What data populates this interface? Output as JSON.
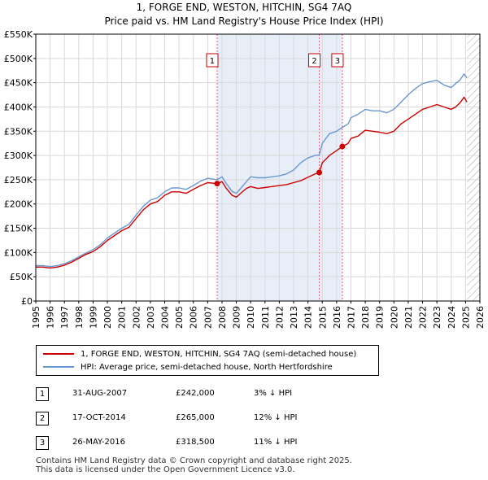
{
  "chart_data": {
    "type": "line",
    "title": "1, FORGE END, WESTON, HITCHIN, SG4 7AQ",
    "subtitle": "Price paid vs. HM Land Registry's House Price Index (HPI)",
    "xlabel": "",
    "ylabel": "",
    "xlim": [
      1995,
      2026
    ],
    "ylim": [
      0,
      550000
    ],
    "y_ticks": [
      0,
      50000,
      100000,
      150000,
      200000,
      250000,
      300000,
      350000,
      400000,
      450000,
      500000,
      550000
    ],
    "y_tick_labels": [
      "£0",
      "£50K",
      "£100K",
      "£150K",
      "£200K",
      "£250K",
      "£300K",
      "£350K",
      "£400K",
      "£450K",
      "£500K",
      "£550K"
    ],
    "x_ticks": [
      1995,
      1996,
      1997,
      1998,
      1999,
      2000,
      2001,
      2002,
      2003,
      2004,
      2005,
      2006,
      2007,
      2008,
      2009,
      2010,
      2011,
      2012,
      2013,
      2014,
      2015,
      2016,
      2017,
      2018,
      2019,
      2020,
      2021,
      2022,
      2023,
      2024,
      2025,
      2026
    ],
    "x_tick_labels": [
      "1995",
      "1996",
      "1997",
      "1998",
      "1999",
      "2000",
      "2001",
      "2002",
      "2003",
      "2004",
      "2005",
      "2006",
      "2007",
      "2008",
      "2009",
      "2010",
      "2011",
      "2012",
      "2013",
      "2014",
      "2015",
      "2016",
      "2017",
      "2018",
      "2019",
      "2020",
      "2021",
      "2022",
      "2023",
      "2024",
      "2025",
      "2026"
    ],
    "grid": true,
    "colors": {
      "price_paid": "#cc0000",
      "hpi": "#6a98d0",
      "shade": "#e8eef8",
      "hatch": "#b0b0b0"
    },
    "shaded_ranges": [
      [
        2007.66,
        2016.4
      ]
    ],
    "hatched_from": 2025.1,
    "series": [
      {
        "name": "1, FORGE END, WESTON, HITCHIN, SG4 7AQ (semi-detached house)",
        "x": [
          1995.0,
          1995.5,
          1996.0,
          1996.5,
          1997.0,
          1997.5,
          1998.0,
          1998.5,
          1999.0,
          1999.5,
          2000.0,
          2000.5,
          2001.0,
          2001.5,
          2002.0,
          2002.5,
          2003.0,
          2003.5,
          2004.0,
          2004.5,
          2005.0,
          2005.5,
          2006.0,
          2006.5,
          2007.0,
          2007.66,
          2008.0,
          2008.3,
          2008.7,
          2009.0,
          2009.3,
          2009.7,
          2010.0,
          2010.5,
          2011.0,
          2011.5,
          2012.0,
          2012.5,
          2013.0,
          2013.5,
          2014.0,
          2014.5,
          2014.79,
          2015.0,
          2015.5,
          2016.0,
          2016.4,
          2016.8,
          2017.0,
          2017.5,
          2018.0,
          2018.5,
          2019.0,
          2019.5,
          2020.0,
          2020.5,
          2021.0,
          2021.5,
          2022.0,
          2022.5,
          2023.0,
          2023.5,
          2024.0,
          2024.3,
          2024.6,
          2024.9,
          2025.1
        ],
        "values": [
          70000,
          70000,
          68000,
          70000,
          74000,
          80000,
          88000,
          96000,
          102000,
          112000,
          125000,
          135000,
          145000,
          152000,
          170000,
          188000,
          200000,
          205000,
          218000,
          225000,
          225000,
          222000,
          230000,
          238000,
          244000,
          242000,
          246000,
          232000,
          218000,
          214000,
          222000,
          232000,
          236000,
          232000,
          234000,
          236000,
          238000,
          240000,
          244000,
          248000,
          255000,
          262000,
          265000,
          285000,
          300000,
          310000,
          318500,
          325000,
          335000,
          340000,
          352000,
          350000,
          348000,
          345000,
          350000,
          365000,
          375000,
          385000,
          395000,
          400000,
          405000,
          400000,
          395000,
          400000,
          408000,
          420000,
          410000
        ]
      },
      {
        "name": "HPI: Average price, semi-detached house, North Hertfordshire",
        "x": [
          1995.0,
          1995.5,
          1996.0,
          1996.5,
          1997.0,
          1997.5,
          1998.0,
          1998.5,
          1999.0,
          1999.5,
          2000.0,
          2000.5,
          2001.0,
          2001.5,
          2002.0,
          2002.5,
          2003.0,
          2003.5,
          2004.0,
          2004.5,
          2005.0,
          2005.5,
          2006.0,
          2006.5,
          2007.0,
          2007.66,
          2008.0,
          2008.3,
          2008.7,
          2009.0,
          2009.3,
          2009.7,
          2010.0,
          2010.5,
          2011.0,
          2011.5,
          2012.0,
          2012.5,
          2013.0,
          2013.5,
          2014.0,
          2014.5,
          2014.79,
          2015.0,
          2015.5,
          2016.0,
          2016.4,
          2016.8,
          2017.0,
          2017.5,
          2018.0,
          2018.5,
          2019.0,
          2019.5,
          2020.0,
          2020.5,
          2021.0,
          2021.5,
          2022.0,
          2022.5,
          2023.0,
          2023.5,
          2024.0,
          2024.3,
          2024.6,
          2024.9,
          2025.1
        ],
        "values": [
          73000,
          73000,
          71000,
          73000,
          77000,
          83000,
          91000,
          99000,
          106000,
          116000,
          130000,
          140000,
          150000,
          158000,
          177000,
          195000,
          208000,
          213000,
          225000,
          233000,
          233000,
          230000,
          238000,
          247000,
          253000,
          250000,
          256000,
          242000,
          226000,
          222000,
          232000,
          246000,
          256000,
          254000,
          254000,
          256000,
          258000,
          262000,
          270000,
          285000,
          295000,
          300000,
          301000,
          325000,
          345000,
          350000,
          358000,
          365000,
          378000,
          385000,
          395000,
          392000,
          392000,
          388000,
          395000,
          410000,
          425000,
          438000,
          448000,
          452000,
          455000,
          445000,
          440000,
          448000,
          455000,
          468000,
          460000
        ]
      }
    ],
    "markers": [
      {
        "label": "1",
        "x": 2007.66,
        "value": 242000
      },
      {
        "label": "2",
        "x": 2014.79,
        "value": 265000
      },
      {
        "label": "3",
        "x": 2016.4,
        "value": 318500
      }
    ]
  },
  "legend": {
    "items": [
      {
        "label": "1, FORGE END, WESTON, HITCHIN, SG4 7AQ (semi-detached house)",
        "color": "#cc0000"
      },
      {
        "label": "HPI: Average price, semi-detached house, North Hertfordshire",
        "color": "#6a98d0"
      }
    ]
  },
  "transactions": [
    {
      "num": "1",
      "date": "31-AUG-2007",
      "price": "£242,000",
      "hpi": "3% ↓ HPI"
    },
    {
      "num": "2",
      "date": "17-OCT-2014",
      "price": "£265,000",
      "hpi": "12% ↓ HPI"
    },
    {
      "num": "3",
      "date": "26-MAY-2016",
      "price": "£318,500",
      "hpi": "11% ↓ HPI"
    }
  ],
  "footer": {
    "line1": "Contains HM Land Registry data © Crown copyright and database right 2025.",
    "line2": "This data is licensed under the Open Government Licence v3.0."
  }
}
